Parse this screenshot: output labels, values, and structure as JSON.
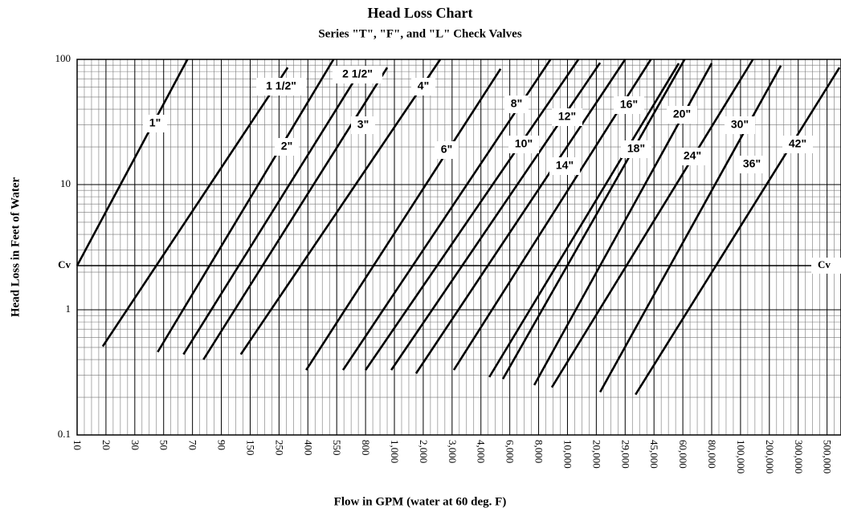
{
  "chart_data": {
    "type": "line",
    "title": "Head Loss Chart",
    "subtitle": "Series \"T\", \"F\", and \"L\" Check Valves",
    "x_label": "Flow in GPM (water at 60 deg. F)",
    "y_label": "Head Loss in Feet of Water",
    "y_scale": "log",
    "grid": true,
    "xlim": [
      10,
      640000
    ],
    "ylim": [
      0.1,
      100
    ],
    "yticks": [
      0.1,
      1,
      10,
      100
    ],
    "xticks": [
      10,
      20,
      30,
      50,
      70,
      90,
      150,
      250,
      400,
      550,
      800,
      {
        "value": 1000,
        "label": "1,000"
      },
      {
        "value": 2000,
        "label": "2,000"
      },
      {
        "value": 3000,
        "label": "3,000"
      },
      {
        "value": 4000,
        "label": "4,000"
      },
      {
        "value": 6000,
        "label": "6,000"
      },
      {
        "value": 8000,
        "label": "8,000"
      },
      {
        "value": 10000,
        "label": "10,000"
      },
      {
        "value": 20000,
        "label": "20,000"
      },
      {
        "value": 29000,
        "label": "29,000"
      },
      {
        "value": 45000,
        "label": "45,000"
      },
      {
        "value": 60000,
        "label": "60,000"
      },
      {
        "value": 80000,
        "label": "80,000"
      },
      {
        "value": 100000,
        "label": "100,000"
      },
      {
        "value": 200000,
        "label": "200,000"
      },
      {
        "value": 300000,
        "label": "300,000"
      },
      {
        "value": 500000,
        "label": "500,000"
      }
    ],
    "cv_line": {
      "value": 2.25,
      "label": "Cv"
    },
    "series": [
      {
        "name": "1\"",
        "color": "#000000",
        "x": [
          10,
          66
        ],
        "values": [
          2.25,
          100
        ]
      },
      {
        "name": "1 1/2\"",
        "color": "#000000",
        "x": [
          18.5,
          288
        ],
        "values": [
          0.51,
          86
        ]
      },
      {
        "name": "2\"",
        "color": "#000000",
        "x": [
          45,
          531
        ],
        "values": [
          0.46,
          100
        ]
      },
      {
        "name": "2 1/2\"",
        "color": "#000000",
        "x": [
          63,
          759
        ],
        "values": [
          0.44,
          84
        ]
      },
      {
        "name": "3\"",
        "color": "#000000",
        "x": [
          77,
          946
        ],
        "values": [
          0.4,
          86
        ]
      },
      {
        "name": "4\"",
        "color": "#000000",
        "x": [
          127,
          2540
        ],
        "values": [
          0.44,
          100
        ]
      },
      {
        "name": "6\"",
        "color": "#000000",
        "x": [
          389,
          5270
        ],
        "values": [
          0.33,
          84
        ]
      },
      {
        "name": "8\"",
        "color": "#000000",
        "x": [
          597,
          8770
        ],
        "values": [
          0.33,
          100
        ]
      },
      {
        "name": "10\"",
        "color": "#000000",
        "x": [
          800,
          13010
        ],
        "values": [
          0.33,
          100
        ]
      },
      {
        "name": "12\"",
        "color": "#000000",
        "x": [
          976,
          21000
        ],
        "values": [
          0.33,
          94
        ]
      },
      {
        "name": "14\"",
        "color": "#000000",
        "x": [
          1682,
          29000
        ],
        "values": [
          0.31,
          100
        ]
      },
      {
        "name": "16\"",
        "color": "#000000",
        "x": [
          3052,
          42900
        ],
        "values": [
          0.33,
          100
        ]
      },
      {
        "name": "18\"",
        "color": "#000000",
        "x": [
          4500,
          57600
        ],
        "values": [
          0.29,
          93
        ]
      },
      {
        "name": "20\"",
        "color": "#000000",
        "x": [
          5444,
          61050
        ],
        "values": [
          0.28,
          100
        ]
      },
      {
        "name": "24\"",
        "color": "#000000",
        "x": [
          7660,
          80000
        ],
        "values": [
          0.25,
          93
        ]
      },
      {
        "name": "30\"",
        "color": "#000000",
        "x": [
          8860,
          134700
        ],
        "values": [
          0.24,
          100
        ]
      },
      {
        "name": "36\"",
        "color": "#000000",
        "x": [
          21000,
          235000
        ],
        "values": [
          0.22,
          89
        ]
      },
      {
        "name": "42\"",
        "color": "#000000",
        "x": [
          33960,
          623000
        ],
        "values": [
          0.21,
          86
        ]
      }
    ]
  }
}
